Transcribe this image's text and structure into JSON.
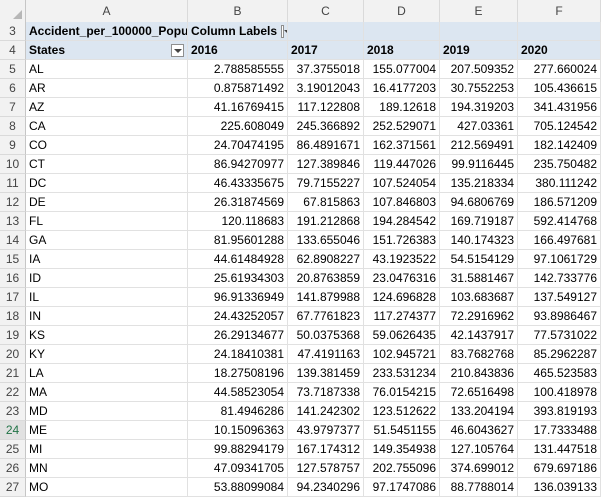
{
  "columns": [
    "A",
    "B",
    "C",
    "D",
    "E",
    "F"
  ],
  "pivot": {
    "value_field": "Accident_per_100000_Popu",
    "column_labels": "Column Labels",
    "row_label": "States",
    "years": [
      "2016",
      "2017",
      "2018",
      "2019",
      "2020"
    ]
  },
  "rows": [
    {
      "num": "5",
      "state": "AL",
      "v": [
        "2.788585555",
        "37.3755018",
        "155.077004",
        "207.509352",
        "277.660024"
      ]
    },
    {
      "num": "6",
      "state": "AR",
      "v": [
        "0.875871492",
        "3.19012043",
        "16.4177203",
        "30.7552253",
        "105.436615"
      ]
    },
    {
      "num": "7",
      "state": "AZ",
      "v": [
        "41.16769415",
        "117.122808",
        "189.12618",
        "194.319203",
        "341.431956"
      ]
    },
    {
      "num": "8",
      "state": "CA",
      "v": [
        "225.608049",
        "245.366892",
        "252.529071",
        "427.03361",
        "705.124542"
      ]
    },
    {
      "num": "9",
      "state": "CO",
      "v": [
        "24.70474195",
        "86.4891671",
        "162.371561",
        "212.569491",
        "182.142409"
      ]
    },
    {
      "num": "10",
      "state": "CT",
      "v": [
        "86.94270977",
        "127.389846",
        "119.447026",
        "99.9116445",
        "235.750482"
      ]
    },
    {
      "num": "11",
      "state": "DC",
      "v": [
        "46.43335675",
        "79.7155227",
        "107.524054",
        "135.218334",
        "380.111242"
      ]
    },
    {
      "num": "12",
      "state": "DE",
      "v": [
        "26.31874569",
        "67.815863",
        "107.846803",
        "94.6806769",
        "186.571209"
      ]
    },
    {
      "num": "13",
      "state": "FL",
      "v": [
        "120.118683",
        "191.212868",
        "194.284542",
        "169.719187",
        "592.414768"
      ]
    },
    {
      "num": "14",
      "state": "GA",
      "v": [
        "81.95601288",
        "133.655046",
        "151.726383",
        "140.174323",
        "166.497681"
      ]
    },
    {
      "num": "15",
      "state": "IA",
      "v": [
        "44.61484928",
        "62.8908227",
        "43.1923522",
        "54.5154129",
        "97.1061729"
      ]
    },
    {
      "num": "16",
      "state": "ID",
      "v": [
        "25.61934303",
        "20.8763859",
        "23.0476316",
        "31.5881467",
        "142.733776"
      ]
    },
    {
      "num": "17",
      "state": "IL",
      "v": [
        "96.91336949",
        "141.879988",
        "124.696828",
        "103.683687",
        "137.549127"
      ]
    },
    {
      "num": "18",
      "state": "IN",
      "v": [
        "24.43252057",
        "67.7761823",
        "117.274377",
        "72.2916962",
        "93.8986467"
      ]
    },
    {
      "num": "19",
      "state": "KS",
      "v": [
        "26.29134677",
        "50.0375368",
        "59.0626435",
        "42.1437917",
        "77.5731022"
      ]
    },
    {
      "num": "20",
      "state": "KY",
      "v": [
        "24.18410381",
        "47.4191163",
        "102.945721",
        "83.7682768",
        "85.2962287"
      ]
    },
    {
      "num": "21",
      "state": "LA",
      "v": [
        "18.27508196",
        "139.381459",
        "233.531234",
        "210.843836",
        "465.523583"
      ]
    },
    {
      "num": "22",
      "state": "MA",
      "v": [
        "44.58523054",
        "73.7187338",
        "76.0154215",
        "72.6516498",
        "100.418978"
      ]
    },
    {
      "num": "23",
      "state": "MD",
      "v": [
        "81.4946286",
        "141.242302",
        "123.512622",
        "133.204194",
        "393.819193"
      ]
    },
    {
      "num": "24",
      "state": "ME",
      "v": [
        "10.15096363",
        "43.9797377",
        "51.5451155",
        "46.6043627",
        "17.7333488"
      ]
    },
    {
      "num": "25",
      "state": "MI",
      "v": [
        "99.88294179",
        "167.174312",
        "149.354938",
        "127.105764",
        "131.447518"
      ]
    },
    {
      "num": "26",
      "state": "MN",
      "v": [
        "47.09341705",
        "127.578757",
        "202.755096",
        "374.699012",
        "679.697186"
      ]
    },
    {
      "num": "27",
      "state": "MO",
      "v": [
        "53.88099084",
        "94.2340296",
        "97.1747086",
        "88.7788014",
        "136.039133"
      ]
    }
  ]
}
